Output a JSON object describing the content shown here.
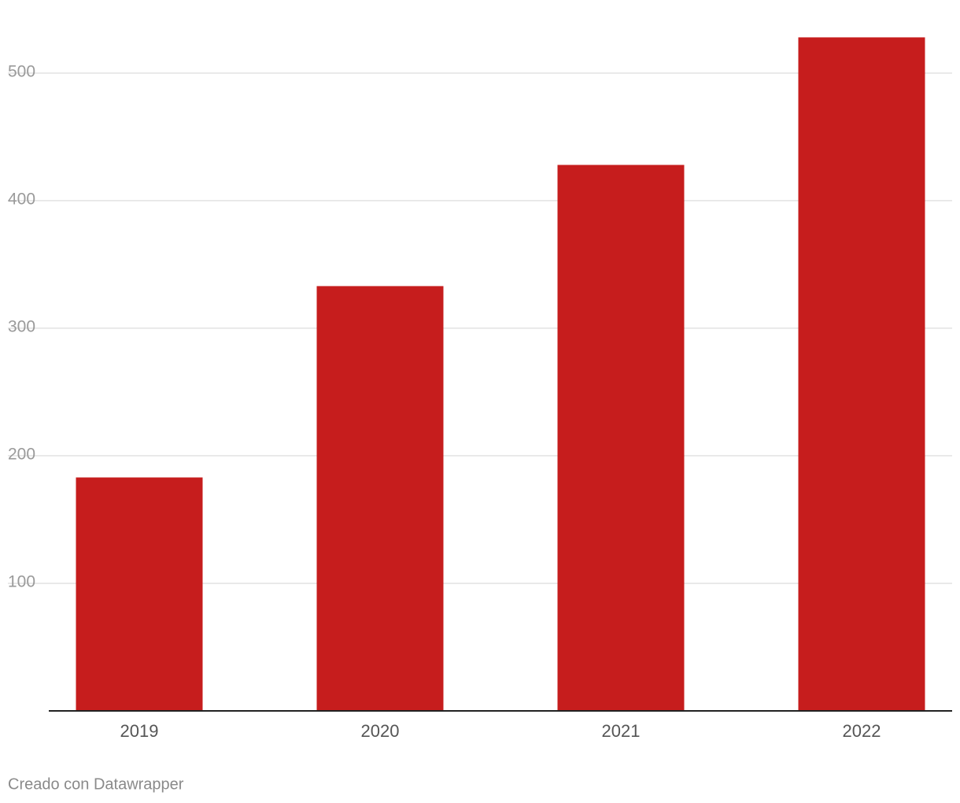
{
  "chart_data": {
    "type": "bar",
    "categories": [
      "2019",
      "2020",
      "2021",
      "2022"
    ],
    "values": [
      183,
      333,
      428,
      528
    ],
    "color": "#c61d1d",
    "ylim": [
      0,
      540
    ],
    "yticks": [
      100,
      200,
      300,
      400,
      500
    ],
    "grid": true,
    "credit": "Creado con Datawrapper"
  }
}
